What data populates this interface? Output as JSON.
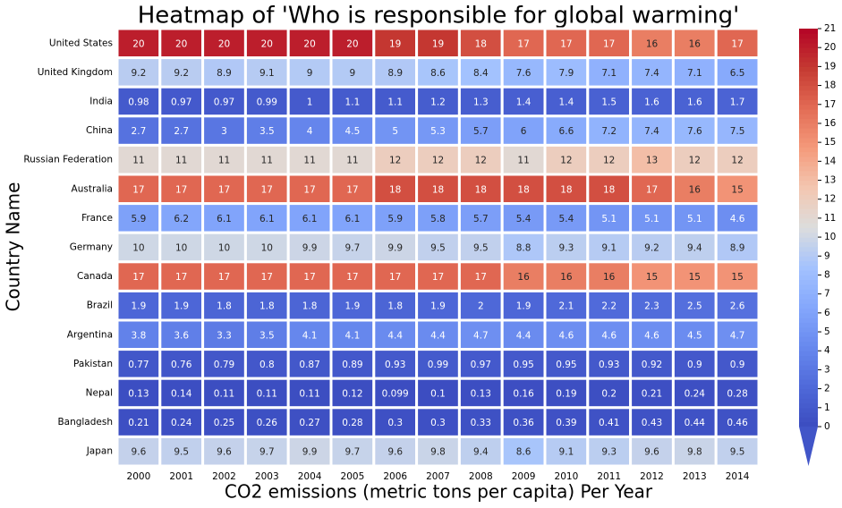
{
  "chart_data": {
    "type": "heatmap",
    "title": "Heatmap of 'Who is responsible for global warming'",
    "x_label": "CO2 emissions (metric tons per capita) Per Year",
    "y_label": "Country Name",
    "x": [
      2000,
      2001,
      2002,
      2003,
      2004,
      2005,
      2006,
      2007,
      2008,
      2009,
      2010,
      2011,
      2012,
      2013,
      2014
    ],
    "y": [
      "United States",
      "United Kingdom",
      "India",
      "China",
      "Russian Federation",
      "Australia",
      "France",
      "Germany",
      "Canada",
      "Brazil",
      "Argentina",
      "Pakistan",
      "Nepal",
      "Bangladesh",
      "Japan"
    ],
    "values": [
      [
        20,
        20,
        20,
        20,
        20,
        20,
        19,
        19,
        18,
        17,
        17,
        17,
        16,
        16,
        17
      ],
      [
        9.2,
        9.2,
        8.9,
        9.1,
        9,
        9,
        8.9,
        8.6,
        8.4,
        7.6,
        7.9,
        7.1,
        7.4,
        7.1,
        6.5
      ],
      [
        0.98,
        0.97,
        0.97,
        0.99,
        1,
        1.1,
        1.1,
        1.2,
        1.3,
        1.4,
        1.4,
        1.5,
        1.6,
        1.6,
        1.7
      ],
      [
        2.7,
        2.7,
        3,
        3.5,
        4,
        4.5,
        5,
        5.3,
        5.7,
        6,
        6.6,
        7.2,
        7.4,
        7.6,
        7.5
      ],
      [
        11,
        11,
        11,
        11,
        11,
        11,
        12,
        12,
        12,
        11,
        12,
        12,
        13,
        12,
        12
      ],
      [
        17,
        17,
        17,
        17,
        17,
        17,
        18,
        18,
        18,
        18,
        18,
        18,
        17,
        16,
        15
      ],
      [
        5.9,
        6.2,
        6.1,
        6.1,
        6.1,
        6.1,
        5.9,
        5.8,
        5.7,
        5.4,
        5.4,
        5.1,
        5.1,
        5.1,
        4.6
      ],
      [
        10,
        10,
        10,
        10,
        9.9,
        9.7,
        9.9,
        9.5,
        9.5,
        8.8,
        9.3,
        9.1,
        9.2,
        9.4,
        8.9
      ],
      [
        17,
        17,
        17,
        17,
        17,
        17,
        17,
        17,
        17,
        16,
        16,
        16,
        15,
        15,
        15
      ],
      [
        1.9,
        1.9,
        1.8,
        1.8,
        1.8,
        1.9,
        1.8,
        1.9,
        2,
        1.9,
        2.1,
        2.2,
        2.3,
        2.5,
        2.6
      ],
      [
        3.8,
        3.6,
        3.3,
        3.5,
        4.1,
        4.1,
        4.4,
        4.4,
        4.7,
        4.4,
        4.6,
        4.6,
        4.6,
        4.5,
        4.7
      ],
      [
        0.77,
        0.76,
        0.79,
        0.8,
        0.87,
        0.89,
        0.93,
        0.99,
        0.97,
        0.95,
        0.95,
        0.93,
        0.92,
        0.9,
        0.9
      ],
      [
        0.13,
        0.14,
        0.11,
        0.11,
        0.11,
        0.12,
        0.099,
        0.1,
        0.13,
        0.16,
        0.19,
        0.2,
        0.21,
        0.24,
        0.28
      ],
      [
        0.21,
        0.24,
        0.25,
        0.26,
        0.27,
        0.28,
        0.3,
        0.3,
        0.33,
        0.36,
        0.39,
        0.41,
        0.43,
        0.44,
        0.46
      ],
      [
        9.6,
        9.5,
        9.6,
        9.7,
        9.9,
        9.7,
        9.6,
        9.8,
        9.4,
        8.6,
        9.1,
        9.3,
        9.6,
        9.8,
        9.5
      ]
    ],
    "colormap": [
      "#3b4cc0",
      "#4f69d9",
      "#6788ee",
      "#84a7fc",
      "#a3c2fe",
      "#dcdddd",
      "#f3c7b1",
      "#f49a7b",
      "#e36c55",
      "#c53a32",
      "#b40426"
    ],
    "clim": [
      0,
      21
    ],
    "cticks": [
      0,
      1,
      2,
      3,
      4,
      5,
      6,
      7,
      8,
      9,
      10,
      11,
      12,
      13,
      14,
      15,
      16,
      17,
      18,
      19,
      20,
      21
    ]
  }
}
